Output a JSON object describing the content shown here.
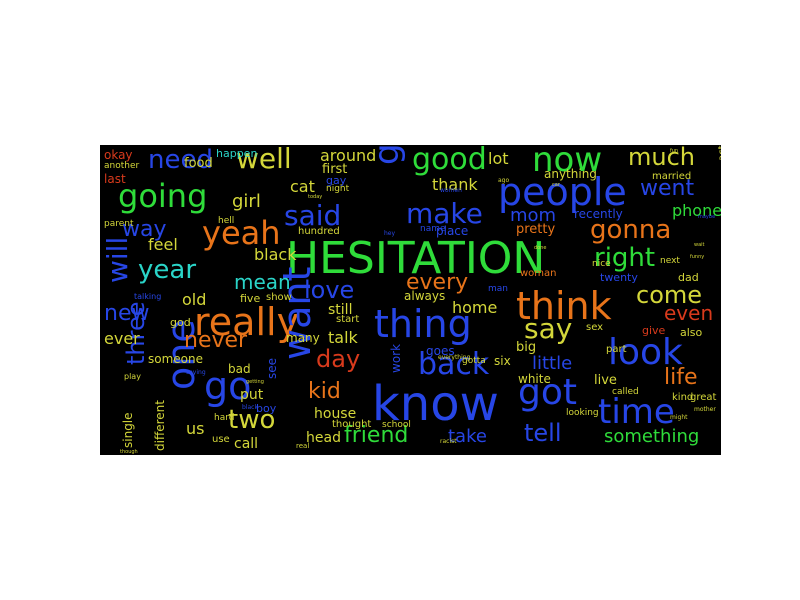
{
  "colors": {
    "background": "#000000",
    "palette": {
      "r": "#d83a1c",
      "o": "#e8741a",
      "y": "#d4d73a",
      "g": "#2fdc3a",
      "c": "#2ad4c8",
      "b": "#2746e6",
      "p": "#3c2fd0"
    }
  },
  "words": [
    {
      "text": "HESITATION",
      "color": "g",
      "weight": 1.0
    },
    {
      "text": "know",
      "color": "b",
      "weight": 0.93
    },
    {
      "text": "think",
      "color": "o",
      "weight": 0.72
    },
    {
      "text": "people",
      "color": "b",
      "weight": 0.74
    },
    {
      "text": "really",
      "color": "o",
      "weight": 0.73
    },
    {
      "text": "thing",
      "color": "b",
      "weight": 0.7
    },
    {
      "text": "one",
      "color": "b",
      "weight": 0.7
    },
    {
      "text": "go",
      "color": "b",
      "weight": 0.7
    },
    {
      "text": "want",
      "color": "b",
      "weight": 0.66
    },
    {
      "text": "got",
      "color": "b",
      "weight": 0.66
    },
    {
      "text": "time",
      "color": "b",
      "weight": 0.6
    },
    {
      "text": "look",
      "color": "b",
      "weight": 0.62
    },
    {
      "text": "now",
      "color": "g",
      "weight": 0.6
    },
    {
      "text": "good",
      "color": "g",
      "weight": 0.52
    },
    {
      "text": "yeah",
      "color": "o",
      "weight": 0.58
    },
    {
      "text": "going",
      "color": "g",
      "weight": 0.55
    },
    {
      "text": "guy",
      "color": "b",
      "weight": 0.55
    },
    {
      "text": "said",
      "color": "b",
      "weight": 0.47
    },
    {
      "text": "make",
      "color": "b",
      "weight": 0.47
    },
    {
      "text": "well",
      "color": "y",
      "weight": 0.47
    },
    {
      "text": "need",
      "color": "b",
      "weight": 0.45
    },
    {
      "text": "year",
      "color": "c",
      "weight": 0.45
    },
    {
      "text": "right",
      "color": "g",
      "weight": 0.45
    },
    {
      "text": "gonna",
      "color": "o",
      "weight": 0.45
    },
    {
      "text": "much",
      "color": "y",
      "weight": 0.45
    },
    {
      "text": "come",
      "color": "y",
      "weight": 0.45
    },
    {
      "text": "say",
      "color": "y",
      "weight": 0.45
    },
    {
      "text": "back",
      "color": "b",
      "weight": 0.55
    },
    {
      "text": "day",
      "color": "r",
      "weight": 0.42
    },
    {
      "text": "love",
      "color": "b",
      "weight": 0.42
    },
    {
      "text": "tell",
      "color": "b",
      "weight": 0.48
    },
    {
      "text": "will",
      "color": "b",
      "weight": 0.42
    },
    {
      "text": "new",
      "color": "b",
      "weight": 0.42
    },
    {
      "text": "three",
      "color": "b",
      "weight": 0.42
    },
    {
      "text": "two",
      "color": "y",
      "weight": 0.42
    },
    {
      "text": "never",
      "color": "o",
      "weight": 0.38
    },
    {
      "text": "life",
      "color": "o",
      "weight": 0.38
    },
    {
      "text": "even",
      "color": "r",
      "weight": 0.36
    },
    {
      "text": "friend",
      "color": "g",
      "weight": 0.38
    },
    {
      "text": "every",
      "color": "o",
      "weight": 0.38
    },
    {
      "text": "went",
      "color": "b",
      "weight": 0.34
    },
    {
      "text": "mean",
      "color": "c",
      "weight": 0.34
    },
    {
      "text": "way",
      "color": "b",
      "weight": 0.34
    },
    {
      "text": "kid",
      "color": "o",
      "weight": 0.34
    },
    {
      "text": "something",
      "color": "g",
      "weight": 0.34
    },
    {
      "text": "little",
      "color": "b",
      "weight": 0.3
    },
    {
      "text": "take",
      "color": "b",
      "weight": 0.3
    },
    {
      "text": "mom",
      "color": "b",
      "weight": 0.3
    },
    {
      "text": "girl",
      "color": "y",
      "weight": 0.3
    },
    {
      "text": "cat",
      "color": "y",
      "weight": 0.28
    },
    {
      "text": "lot",
      "color": "y",
      "weight": 0.28
    },
    {
      "text": "thank",
      "color": "y",
      "weight": 0.28
    },
    {
      "text": "feel",
      "color": "y",
      "weight": 0.28
    },
    {
      "text": "black",
      "color": "y",
      "weight": 0.26
    },
    {
      "text": "old",
      "color": "y",
      "weight": 0.26
    },
    {
      "text": "talk",
      "color": "y",
      "weight": 0.26
    },
    {
      "text": "home",
      "color": "y",
      "weight": 0.26
    },
    {
      "text": "around",
      "color": "y",
      "weight": 0.26
    },
    {
      "text": "phone",
      "color": "g",
      "weight": 0.26
    },
    {
      "text": "still",
      "color": "y",
      "weight": 0.22
    },
    {
      "text": "ever",
      "color": "y",
      "weight": 0.24
    },
    {
      "text": "us",
      "color": "y",
      "weight": 0.26
    },
    {
      "text": "house",
      "color": "y",
      "weight": 0.22
    },
    {
      "text": "head",
      "color": "y",
      "weight": 0.22
    },
    {
      "text": "call",
      "color": "y",
      "weight": 0.22
    },
    {
      "text": "put",
      "color": "y",
      "weight": 0.22
    },
    {
      "text": "food",
      "color": "y",
      "weight": 0.2
    },
    {
      "text": "first",
      "color": "y",
      "weight": 0.2
    },
    {
      "text": "pretty",
      "color": "o",
      "weight": 0.2
    },
    {
      "text": "place",
      "color": "b",
      "weight": 0.18
    },
    {
      "text": "always",
      "color": "y",
      "weight": 0.18
    },
    {
      "text": "recently",
      "color": "b",
      "weight": 0.18
    },
    {
      "text": "someone",
      "color": "y",
      "weight": 0.18
    },
    {
      "text": "different",
      "color": "y",
      "weight": 0.18
    },
    {
      "text": "single",
      "color": "y",
      "weight": 0.16
    },
    {
      "text": "white",
      "color": "y",
      "weight": 0.16
    },
    {
      "text": "live",
      "color": "y",
      "weight": 0.18
    },
    {
      "text": "big",
      "color": "y",
      "weight": 0.18
    },
    {
      "text": "six",
      "color": "y",
      "weight": 0.16
    },
    {
      "text": "goes",
      "color": "b",
      "weight": 0.16
    },
    {
      "text": "work",
      "color": "b",
      "weight": 0.16
    },
    {
      "text": "many",
      "color": "y",
      "weight": 0.16
    },
    {
      "text": "see",
      "color": "b",
      "weight": 0.16
    },
    {
      "text": "bad",
      "color": "y",
      "weight": 0.16
    },
    {
      "text": "five",
      "color": "y",
      "weight": 0.16
    },
    {
      "text": "show",
      "color": "y",
      "weight": 0.14
    },
    {
      "text": "god",
      "color": "y",
      "weight": 0.14
    },
    {
      "text": "happen",
      "color": "c",
      "weight": 0.16
    },
    {
      "text": "okay",
      "color": "r",
      "weight": 0.16
    },
    {
      "text": "last",
      "color": "r",
      "weight": 0.16
    },
    {
      "text": "another",
      "color": "y",
      "weight": 0.12
    },
    {
      "text": "anything",
      "color": "y",
      "weight": 0.16
    },
    {
      "text": "woman",
      "color": "o",
      "weight": 0.14
    },
    {
      "text": "twenty",
      "color": "b",
      "weight": 0.16
    },
    {
      "text": "dad",
      "color": "y",
      "weight": 0.16
    },
    {
      "text": "actually",
      "color": "y",
      "weight": 0.16
    },
    {
      "text": "married",
      "color": "y",
      "weight": 0.14
    },
    {
      "text": "nice",
      "color": "y",
      "weight": 0.14
    },
    {
      "text": "next",
      "color": "y",
      "weight": 0.12
    },
    {
      "text": "sex",
      "color": "y",
      "weight": 0.14
    },
    {
      "text": "give",
      "color": "r",
      "weight": 0.14
    },
    {
      "text": "also",
      "color": "y",
      "weight": 0.14
    },
    {
      "text": "part",
      "color": "y",
      "weight": 0.14
    },
    {
      "text": "called",
      "color": "y",
      "weight": 0.12
    },
    {
      "text": "kind",
      "color": "y",
      "weight": 0.14
    },
    {
      "text": "great",
      "color": "y",
      "weight": 0.14
    },
    {
      "text": "looking",
      "color": "y",
      "weight": 0.14
    },
    {
      "text": "hundred",
      "color": "y",
      "weight": 0.12
    },
    {
      "text": "name",
      "color": "b",
      "weight": 0.12
    },
    {
      "text": "start",
      "color": "y",
      "weight": 0.12
    },
    {
      "text": "thought",
      "color": "y",
      "weight": 0.14
    },
    {
      "text": "school",
      "color": "y",
      "weight": 0.12
    },
    {
      "text": "gotta",
      "color": "y",
      "weight": 0.12
    },
    {
      "text": "man",
      "color": "b",
      "weight": 0.12
    },
    {
      "text": "boy",
      "color": "b",
      "weight": 0.14
    },
    {
      "text": "hard",
      "color": "y",
      "weight": 0.12
    },
    {
      "text": "use",
      "color": "y",
      "weight": 0.12
    },
    {
      "text": "play",
      "color": "y",
      "weight": 0.1
    },
    {
      "text": "night",
      "color": "y",
      "weight": 0.1
    },
    {
      "text": "hell",
      "color": "y",
      "weight": 0.1
    },
    {
      "text": "parent",
      "color": "y",
      "weight": 0.1
    },
    {
      "text": "gay",
      "color": "b",
      "weight": 0.14
    },
    {
      "text": "talking",
      "color": "b",
      "weight": 0.1
    },
    {
      "text": "women",
      "color": "b",
      "weight": 0.08
    },
    {
      "text": "everything",
      "color": "y",
      "weight": 0.08
    },
    {
      "text": "racist",
      "color": "y",
      "weight": 0.08
    },
    {
      "text": "saying",
      "color": "b",
      "weight": 0.08
    },
    {
      "text": "real",
      "color": "y",
      "weight": 0.08
    },
    {
      "text": "mother",
      "color": "y",
      "weight": 0.08
    },
    {
      "text": "might",
      "color": "y",
      "weight": 0.08
    },
    {
      "text": "getting",
      "color": "y",
      "weight": 0.08
    },
    {
      "text": "funny",
      "color": "y",
      "weight": 0.08
    },
    {
      "text": "today",
      "color": "y",
      "weight": 0.08
    },
    {
      "text": "black",
      "color": "b",
      "weight": 0.08
    },
    {
      "text": "ago",
      "color": "y",
      "weight": 0.08
    },
    {
      "text": "though",
      "color": "y",
      "weight": 0.08
    },
    {
      "text": "maybe",
      "color": "b",
      "weight": 0.08
    },
    {
      "text": "hey",
      "color": "b",
      "weight": 0.08
    },
    {
      "text": "wait",
      "color": "y",
      "weight": 0.08
    },
    {
      "text": "done",
      "color": "y",
      "weight": 0.08
    },
    {
      "text": "car",
      "color": "y",
      "weight": 0.08
    },
    {
      "text": "fun",
      "color": "y",
      "weight": 0.08
    }
  ]
}
